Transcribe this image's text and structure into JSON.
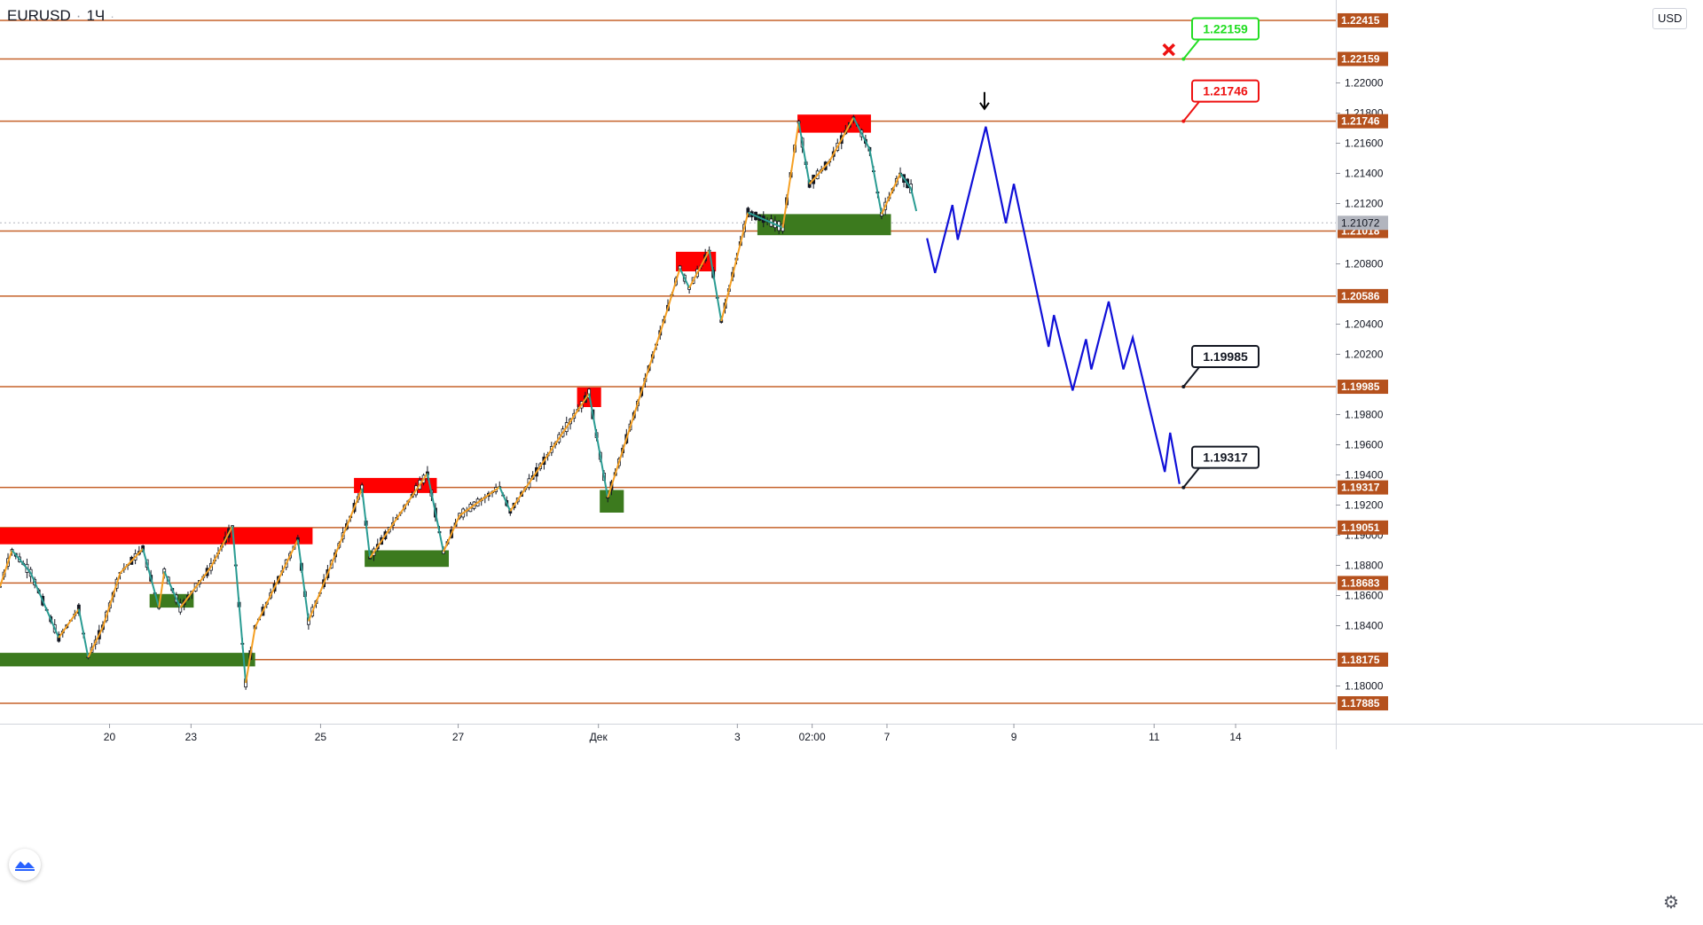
{
  "header": {
    "symbol": "EURUSD",
    "separator": "·",
    "interval": "1Ч",
    "extra": "·"
  },
  "currency_button": "USD",
  "colors": {
    "level_line": "#c5622a",
    "level_label_bg": "#b5511d",
    "supply_zone": "#ff0000",
    "demand_zone": "#3c7a1e",
    "zigzag_up": "#f5a023",
    "zigzag_down": "#2a9c93",
    "forecast": "#1010d8",
    "candle": "#131722",
    "current_price_bg": "#b2b5be",
    "tp_green": "#22dd22",
    "sl_red": "#ee1111",
    "target_black": "#131722"
  },
  "icons": {
    "settings": "gear-icon",
    "logo": "tradingview-logo",
    "cancel": "cross-icon",
    "arrow": "arrow-down-icon"
  },
  "chart_data": {
    "type": "line",
    "title": "",
    "xlabel": "",
    "ylabel": "",
    "ylim": [
      1.1775,
      1.2255
    ],
    "grid": false,
    "x_axis_ticks": [
      "20",
      "23",
      "25",
      "27",
      "Дек",
      "3",
      "02:00",
      "7",
      "9",
      "11",
      "14"
    ],
    "y_axis_ticks": [
      "1.22000",
      "1.21800",
      "1.21600",
      "1.21400",
      "1.21200",
      "1.20800",
      "1.20400",
      "1.20200",
      "1.19800",
      "1.19600",
      "1.19400",
      "1.19200",
      "1.19000",
      "1.18800",
      "1.18600",
      "1.18400",
      "1.18000"
    ],
    "levels": [
      "1.22415",
      "1.22159",
      "1.21746",
      "1.21018",
      "1.20586",
      "1.19985",
      "1.19317",
      "1.19051",
      "1.18683",
      "1.18175",
      "1.17885"
    ],
    "current_price": "1.21072",
    "callouts": [
      {
        "label": "1.22159",
        "style": "green",
        "price": 1.22159
      },
      {
        "label": "1.21746",
        "style": "red",
        "price": 1.21746
      },
      {
        "label": "1.19985",
        "style": "black",
        "price": 1.19985
      },
      {
        "label": "1.19317",
        "style": "black",
        "price": 1.19317
      }
    ],
    "supply_zones": [
      {
        "x0": 0.0,
        "x1": 23.4,
        "y0": 1.1894,
        "y1": 1.1905
      },
      {
        "x0": 26.5,
        "x1": 32.7,
        "y0": 1.1928,
        "y1": 1.1938
      },
      {
        "x0": 43.2,
        "x1": 45.0,
        "y0": 1.1985,
        "y1": 1.1998
      },
      {
        "x0": 50.6,
        "x1": 53.6,
        "y0": 1.2075,
        "y1": 1.2088
      },
      {
        "x0": 59.7,
        "x1": 65.2,
        "y0": 1.2167,
        "y1": 1.2179
      }
    ],
    "demand_zones": [
      {
        "x0": 0.0,
        "x1": 19.1,
        "y0": 1.1813,
        "y1": 1.1822
      },
      {
        "x0": 11.2,
        "x1": 14.5,
        "y0": 1.1852,
        "y1": 1.1861
      },
      {
        "x0": 27.3,
        "x1": 33.6,
        "y0": 1.1879,
        "y1": 1.189
      },
      {
        "x0": 44.9,
        "x1": 46.7,
        "y0": 1.1915,
        "y1": 1.193
      },
      {
        "x0": 56.7,
        "x1": 66.7,
        "y0": 1.2099,
        "y1": 1.2113
      }
    ],
    "price_path": [
      {
        "x": 0.0,
        "y": 1.1866
      },
      {
        "x": 0.9,
        "y": 1.189
      },
      {
        "x": 2.3,
        "y": 1.1875
      },
      {
        "x": 4.4,
        "y": 1.1832
      },
      {
        "x": 5.9,
        "y": 1.1851
      },
      {
        "x": 6.6,
        "y": 1.1819
      },
      {
        "x": 7.7,
        "y": 1.1839
      },
      {
        "x": 9.0,
        "y": 1.1875
      },
      {
        "x": 10.7,
        "y": 1.1891
      },
      {
        "x": 11.9,
        "y": 1.1852
      },
      {
        "x": 12.3,
        "y": 1.1876
      },
      {
        "x": 13.5,
        "y": 1.1852
      },
      {
        "x": 15.8,
        "y": 1.1879
      },
      {
        "x": 17.4,
        "y": 1.1906
      },
      {
        "x": 18.4,
        "y": 1.1802
      },
      {
        "x": 19.1,
        "y": 1.1839
      },
      {
        "x": 22.3,
        "y": 1.1897
      },
      {
        "x": 23.1,
        "y": 1.1843
      },
      {
        "x": 27.1,
        "y": 1.1931
      },
      {
        "x": 27.7,
        "y": 1.1885
      },
      {
        "x": 32.0,
        "y": 1.1941
      },
      {
        "x": 33.2,
        "y": 1.1889
      },
      {
        "x": 34.4,
        "y": 1.1913
      },
      {
        "x": 37.4,
        "y": 1.1932
      },
      {
        "x": 38.2,
        "y": 1.1916
      },
      {
        "x": 44.1,
        "y": 1.1994
      },
      {
        "x": 45.5,
        "y": 1.1925
      },
      {
        "x": 49.7,
        "y": 1.2042
      },
      {
        "x": 50.9,
        "y": 1.2077
      },
      {
        "x": 51.6,
        "y": 1.2064
      },
      {
        "x": 53.1,
        "y": 1.2089
      },
      {
        "x": 54.0,
        "y": 1.2042
      },
      {
        "x": 56.0,
        "y": 1.2114
      },
      {
        "x": 58.6,
        "y": 1.2104
      },
      {
        "x": 59.8,
        "y": 1.2174
      },
      {
        "x": 60.6,
        "y": 1.2133
      },
      {
        "x": 62.1,
        "y": 1.2148
      },
      {
        "x": 63.9,
        "y": 1.2177
      },
      {
        "x": 65.1,
        "y": 1.2156
      },
      {
        "x": 66.0,
        "y": 1.2113
      },
      {
        "x": 67.4,
        "y": 1.214
      },
      {
        "x": 68.2,
        "y": 1.213
      },
      {
        "x": 68.6,
        "y": 1.2115
      }
    ],
    "forecast_path": [
      {
        "x": 69.4,
        "y": 1.2097
      },
      {
        "x": 70.0,
        "y": 1.2074
      },
      {
        "x": 71.3,
        "y": 1.2119
      },
      {
        "x": 71.7,
        "y": 1.2096
      },
      {
        "x": 73.8,
        "y": 1.2171
      },
      {
        "x": 75.3,
        "y": 1.2107
      },
      {
        "x": 75.9,
        "y": 1.2133
      },
      {
        "x": 78.5,
        "y": 1.2025
      },
      {
        "x": 78.9,
        "y": 1.2046
      },
      {
        "x": 80.3,
        "y": 1.1996
      },
      {
        "x": 81.3,
        "y": 1.203
      },
      {
        "x": 81.7,
        "y": 1.201
      },
      {
        "x": 83.0,
        "y": 1.2055
      },
      {
        "x": 84.1,
        "y": 1.201
      },
      {
        "x": 84.8,
        "y": 1.2031
      },
      {
        "x": 87.2,
        "y": 1.1942
      },
      {
        "x": 87.6,
        "y": 1.1968
      },
      {
        "x": 88.3,
        "y": 1.1934
      }
    ],
    "down_arrow": {
      "x": 73.7,
      "y": 1.2181
    },
    "cancel_mark": {
      "x": 87.5,
      "y": 1.2222
    }
  }
}
